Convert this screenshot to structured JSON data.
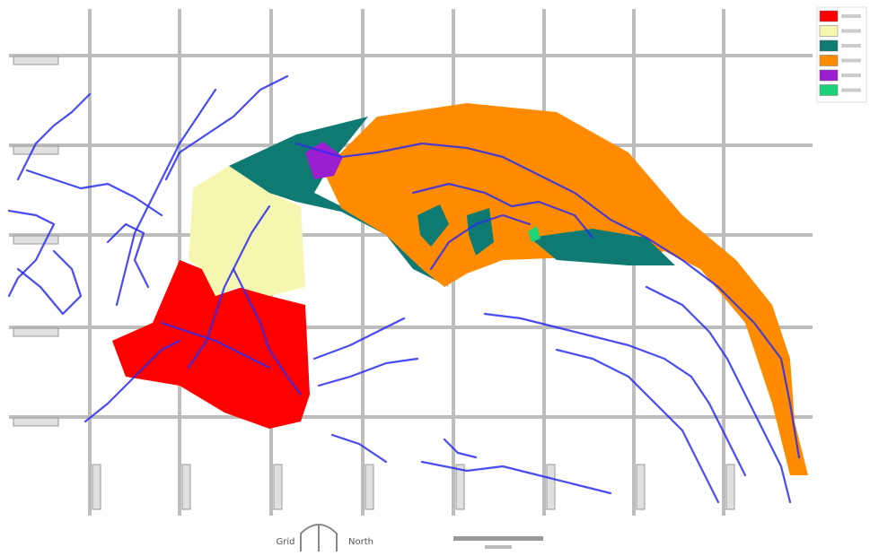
{
  "map": {
    "legend": {
      "colors": [
        "#ff0000",
        "#f5f7b0",
        "#0e7a72",
        "#ff8c00",
        "#9b1fd1",
        "#1ed27a"
      ]
    },
    "north_arrow": {
      "left": "Grid",
      "right": "North"
    }
  }
}
